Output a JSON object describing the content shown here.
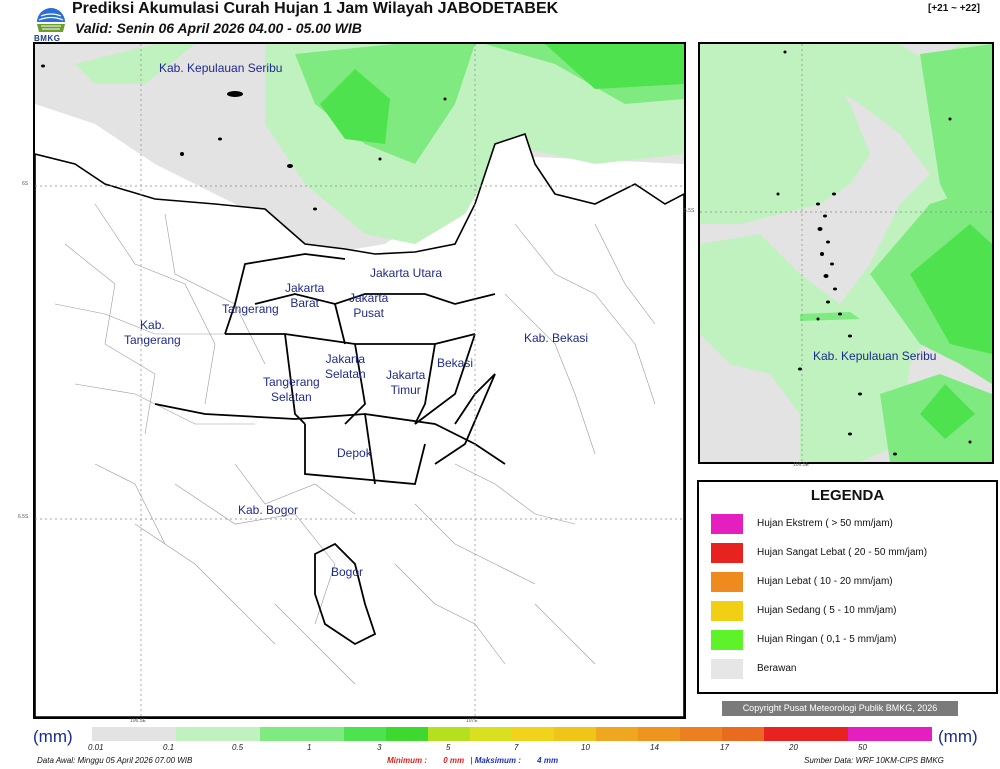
{
  "header": {
    "title": "Prediksi Akumulasi Curah Hujan 1 Jam Wilayah JABODETABEK",
    "valid": "Valid: Senin 06 April 2026 04.00 - 05.00 WIB",
    "range": "[+21 ~ +22]",
    "logo_text": "BMKG"
  },
  "main_map": {
    "labels": [
      "Kab. Kepulauan Seribu",
      "Jakarta Utara",
      "Jakarta\nBarat",
      "Jakarta\nPusat",
      "Tangerang",
      "Kab.\nTangerang",
      "Kab. Bekasi",
      "Jakarta\nSelatan",
      "Jakarta\nTimur",
      "Bekasi",
      "Tangerang\nSelatan",
      "Depok",
      "Kab. Bogor",
      "Bogor"
    ],
    "coords": [
      "6S",
      "6.5S",
      "106.5E",
      "107E"
    ]
  },
  "inset_map": {
    "labels": [
      "Kab. Kepulauan Seribu"
    ],
    "coords": [
      "5.5S",
      "106.5E"
    ]
  },
  "legend": {
    "title": "LEGENDA",
    "items": [
      {
        "label": "Hujan Ekstrem ( > 50 mm/jam)",
        "color": "#e51fbf"
      },
      {
        "label": "Hujan Sangat Lebat ( 20 - 50 mm/jam)",
        "color": "#e8231f"
      },
      {
        "label": "Hujan Lebat ( 10 - 20 mm/jam)",
        "color": "#ef8a1f"
      },
      {
        "label": "Hujan Sedang ( 5 - 10 mm/jam)",
        "color": "#f0cf15"
      },
      {
        "label": "Hujan Ringan ( 0,1 - 5 mm/jam)",
        "color": "#5ef228"
      },
      {
        "label": "Berawan",
        "color": "#e6e6e6"
      }
    ]
  },
  "copyright": "Copyright Pusat Meteorologi Publik BMKG, 2026",
  "colorbar": {
    "unit_left": "(mm)",
    "unit_right": "(mm)",
    "colors": [
      "#e3e3e3",
      "#e3e3e3",
      "#bff2bf",
      "#bff2bf",
      "#7fea80",
      "#7fea80",
      "#4fe24f",
      "#3fd82f",
      "#b5e01f",
      "#d8e01f",
      "#f0d31a",
      "#f0c51a",
      "#efa71f",
      "#ef951f",
      "#ec7f1f",
      "#ea6a1f",
      "#e8231f",
      "#e8231f",
      "#e51fbf",
      "#e51fbf"
    ],
    "ticks": [
      "0.01",
      "0.1",
      "0.5",
      "1",
      "3",
      "5",
      "7",
      "10",
      "14",
      "17",
      "20",
      "50"
    ]
  },
  "footer": {
    "data_awal": "Data Awal: Minggu 05 April 2026 07.00 WIB",
    "minimum_label": "Minimum :",
    "minimum_value": "0 mm",
    "separator": "|",
    "maksimum_label": "Maksimum :",
    "maksimum_value": "4 mm",
    "sumber": "Sumber Data: WRF 10KM-CIPS BMKG"
  }
}
